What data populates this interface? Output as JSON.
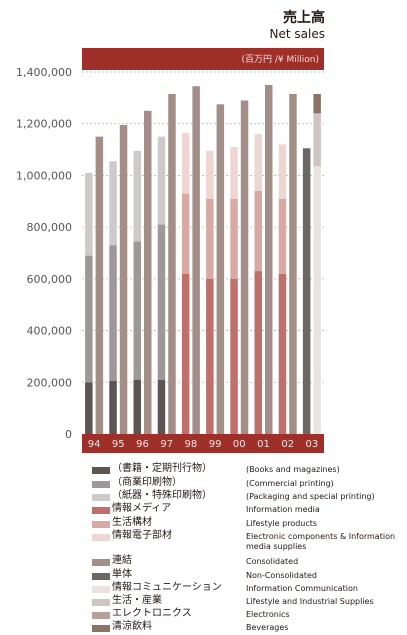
{
  "title": {
    "jp": "売上高",
    "en": "Net sales"
  },
  "unit": "(百万円 /¥ Million)",
  "colors": {
    "banner": "#9e2f29",
    "banner_text": "#f6ddd9"
  },
  "chart_data": {
    "type": "bar",
    "stacked": true,
    "ylim": [
      0,
      1400000
    ],
    "yticks": [
      0,
      200000,
      400000,
      600000,
      800000,
      1000000,
      1200000,
      1400000
    ],
    "ytick_labels": [
      "0",
      "200,000",
      "400,000",
      "600,000",
      "800,000",
      "1,000,000",
      "1,200,000",
      "1,400,000"
    ],
    "grid": true,
    "categories": [
      "94",
      "95",
      "96",
      "97",
      "98",
      "99",
      "00",
      "01",
      "02",
      "03"
    ],
    "groups": [
      {
        "bar": "non-consolidated",
        "segments": [
          {
            "legend_index": 0,
            "values": [
              200000,
              205000,
              210000,
              210000,
              null,
              null,
              null,
              null,
              null,
              null
            ]
          },
          {
            "legend_index": 1,
            "values": [
              490000,
              525000,
              535000,
              600000,
              null,
              null,
              null,
              null,
              null,
              null
            ]
          },
          {
            "legend_index": 2,
            "values": [
              320000,
              325000,
              350000,
              340000,
              null,
              null,
              null,
              null,
              null,
              null
            ]
          },
          {
            "legend_index": 3,
            "values": [
              null,
              null,
              null,
              null,
              620000,
              600000,
              600000,
              630000,
              620000,
              null
            ]
          },
          {
            "legend_index": 4,
            "values": [
              null,
              null,
              null,
              null,
              310000,
              310000,
              310000,
              310000,
              290000,
              null
            ]
          },
          {
            "legend_index": 5,
            "values": [
              null,
              null,
              null,
              null,
              235000,
              185000,
              200000,
              220000,
              210000,
              null
            ]
          },
          {
            "legend_index": 7,
            "values": [
              null,
              null,
              null,
              null,
              null,
              null,
              null,
              null,
              null,
              1105000
            ]
          }
        ]
      },
      {
        "bar": "consolidated",
        "segments": [
          {
            "legend_index": 6,
            "values": [
              1150000,
              1195000,
              1250000,
              1315000,
              1345000,
              1275000,
              1290000,
              1350000,
              1315000,
              null
            ]
          },
          {
            "legend_index": 8,
            "values": [
              null,
              null,
              null,
              null,
              null,
              null,
              null,
              null,
              null,
              1035000
            ]
          },
          {
            "legend_index": 9,
            "values": [
              null,
              null,
              null,
              null,
              null,
              null,
              null,
              null,
              null,
              205000
            ]
          },
          {
            "legend_index": 10,
            "values": [
              null,
              null,
              null,
              null,
              null,
              null,
              null,
              null,
              null,
              null
            ]
          },
          {
            "legend_index": 11,
            "values": [
              null,
              null,
              null,
              null,
              null,
              null,
              null,
              null,
              null,
              75000
            ]
          }
        ]
      }
    ],
    "legend": [
      {
        "jp": "（書籍・定期刊行物）",
        "en": "(Books and magazines)",
        "color": "#5b5654"
      },
      {
        "jp": "（商業印刷物）",
        "en": "(Commercial printing)",
        "color": "#9c9998"
      },
      {
        "jp": "（紙器・特殊印刷物）",
        "en": "(Packaging and special printing)",
        "color": "#cdcbca"
      },
      {
        "jp": "情報メディア",
        "en": "Information media",
        "color": "#c0706a"
      },
      {
        "jp": "生活構材",
        "en": "Lifestyle products",
        "color": "#d9a9a4"
      },
      {
        "jp": "情報電子部材",
        "en": "Electronic components & Information media supplies",
        "color": "#eed6d3"
      },
      {
        "jp": "連結",
        "en": "Consolidated",
        "color": "#a38f88"
      },
      {
        "jp": "単体",
        "en": "Non-Consolidated",
        "color": "#6c6766"
      },
      {
        "jp": "情報コミュニケーション",
        "en": "Information Communication",
        "color": "#e9e4e3"
      },
      {
        "jp": "生活・産業",
        "en": "Lifestyle and Industrial Supplies",
        "color": "#cfc5c2"
      },
      {
        "jp": "エレクトロニクス",
        "en": "Electronics",
        "color": "#b8a19a"
      },
      {
        "jp": "清涼飲料",
        "en": "Beverages",
        "color": "#8c7366"
      }
    ]
  }
}
